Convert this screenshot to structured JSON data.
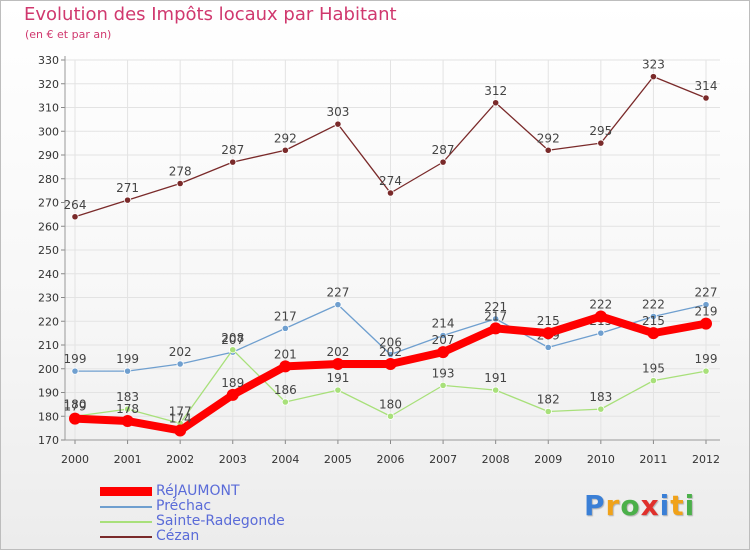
{
  "header": {
    "title": "Evolution des Impôts locaux par Habitant",
    "subtitle": "(en € et par an)"
  },
  "logo": {
    "text": "Proxiti",
    "letter_colors": [
      "#3a7fd6",
      "#f0a21a",
      "#4bb04a",
      "#e0302c",
      "#3a7fd6",
      "#f0a21a",
      "#4bb04a"
    ]
  },
  "chart_data": {
    "type": "line",
    "x": [
      "2000",
      "2001",
      "2002",
      "2003",
      "2004",
      "2005",
      "2006",
      "2007",
      "2008",
      "2009",
      "2010",
      "2011",
      "2012"
    ],
    "ylim": [
      170,
      330
    ],
    "yticks": [
      170,
      180,
      190,
      200,
      210,
      220,
      230,
      240,
      250,
      260,
      270,
      280,
      290,
      300,
      310,
      320,
      330
    ],
    "grid": true,
    "legend_position": "bottom-left",
    "series": [
      {
        "name": "RéJAUMONT",
        "color": "#ff0000",
        "values": [
          179,
          178,
          174,
          189,
          201,
          202,
          202,
          207,
          217,
          215,
          222,
          215,
          219
        ],
        "labels": [
          "179",
          "178",
          "174",
          "189",
          "201",
          "202",
          "202",
          "207",
          "217",
          "215",
          "222",
          "215",
          "219"
        ]
      },
      {
        "name": "Préchac",
        "color": "#6f9fcf",
        "values": [
          199,
          199,
          202,
          207,
          217,
          227,
          206,
          214,
          221,
          209,
          215,
          222,
          227
        ],
        "labels": [
          "199",
          "199",
          "202",
          "207",
          "217",
          "227",
          "206",
          "214",
          "221",
          "209",
          "215",
          "222",
          "227"
        ]
      },
      {
        "name": "Sainte-Radegonde",
        "color": "#a8e07a",
        "values": [
          180,
          183,
          177,
          208,
          186,
          191,
          180,
          193,
          191,
          182,
          183,
          195,
          199
        ],
        "labels": [
          "180",
          "183",
          "177",
          "208",
          "186",
          "191",
          "180",
          "193",
          "191",
          "182",
          "183",
          "195",
          "199"
        ]
      },
      {
        "name": "Cézan",
        "color": "#7a2a2a",
        "values": [
          264,
          271,
          278,
          287,
          292,
          303,
          274,
          287,
          312,
          292,
          295,
          323,
          314
        ],
        "labels": [
          "264",
          "271",
          "278",
          "287",
          "292",
          "303",
          "274",
          "287",
          "312",
          "292",
          "295",
          "323",
          "314"
        ]
      }
    ]
  }
}
